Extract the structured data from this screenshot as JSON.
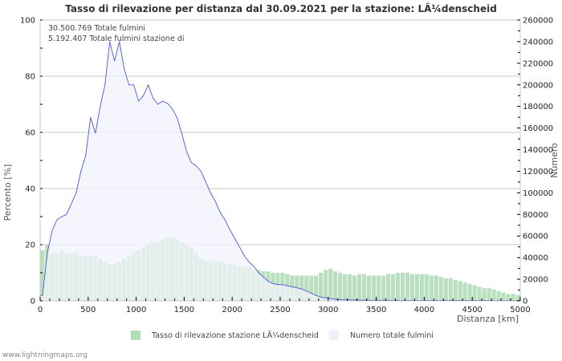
{
  "chart_data": {
    "type": "bar+area",
    "title": "Tasso di rilevazione per distanza dal 30.09.2021 per la stazione: LÃ¼denscheid",
    "xlabel": "Distanza   [km]",
    "ylabel_left": "Percento   [%]",
    "ylabel_right": "Numero",
    "xlim": [
      0,
      5000
    ],
    "ylim_left": [
      0,
      100
    ],
    "ylim_right": [
      0,
      260000
    ],
    "x_ticks": [
      0,
      500,
      1000,
      1500,
      2000,
      2500,
      3000,
      3500,
      4000,
      4500,
      5000
    ],
    "y_ticks_left": [
      0,
      20,
      40,
      60,
      80,
      100
    ],
    "y_ticks_right": [
      0,
      20000,
      40000,
      60000,
      80000,
      100000,
      120000,
      140000,
      160000,
      180000,
      200000,
      220000,
      240000,
      260000
    ],
    "grid": true,
    "annotations": [
      "30.500.769 Totale fulmini",
      "5.192.407 Totale fulmini stazione di"
    ],
    "legend": [
      "Tasso di rilevazione stazione LÃ¼denscheid",
      "Numero totale fulmini"
    ],
    "colors": {
      "detection_rate": "#b3dfb8",
      "total_strikes_fill": "#f2f2fc",
      "total_strikes_line": "#4a5ad8"
    },
    "x": [
      0,
      50,
      100,
      150,
      200,
      250,
      300,
      350,
      400,
      450,
      500,
      550,
      600,
      650,
      700,
      750,
      800,
      850,
      900,
      950,
      1000,
      1050,
      1100,
      1150,
      1200,
      1250,
      1300,
      1350,
      1400,
      1450,
      1500,
      1550,
      1600,
      1650,
      1700,
      1750,
      1800,
      1850,
      1900,
      1950,
      2000,
      2050,
      2100,
      2150,
      2200,
      2250,
      2300,
      2350,
      2400,
      2450,
      2500,
      2550,
      2600,
      2650,
      2700,
      2750,
      2800,
      2850,
      2900,
      2950,
      3000,
      3050,
      3100,
      3150,
      3200,
      3250,
      3300,
      3350,
      3400,
      3450,
      3500,
      3550,
      3600,
      3650,
      3700,
      3750,
      3800,
      3850,
      3900,
      3950,
      4000,
      4050,
      4100,
      4150,
      4200,
      4250,
      4300,
      4350,
      4400,
      4450,
      4500,
      4550,
      4600,
      4650,
      4700,
      4750,
      4800,
      4850,
      4900,
      4950
    ],
    "series": [
      {
        "name": "Tasso di rilevazione stazione LÃ¼denscheid",
        "axis": "left",
        "unit": "%",
        "values": [
          18,
          20,
          17,
          17,
          18,
          17,
          17,
          17,
          16,
          16,
          16,
          16,
          15,
          14,
          13,
          13,
          14,
          15,
          16,
          17,
          18,
          19,
          20,
          21,
          21,
          22,
          22.5,
          22.5,
          22,
          21,
          20,
          19,
          17,
          15,
          14.5,
          14.5,
          14,
          14,
          13.5,
          13,
          13,
          12.5,
          12,
          12,
          11,
          11,
          10.5,
          10.5,
          10,
          10,
          10,
          9.5,
          9,
          9,
          9,
          9,
          9,
          9,
          10,
          11,
          11.5,
          10.5,
          10,
          9.5,
          9.5,
          9,
          9.5,
          9.5,
          9,
          9,
          9,
          9,
          9.5,
          9.5,
          10,
          10,
          10,
          9.5,
          9.5,
          9.5,
          9.5,
          9,
          9,
          8.5,
          8,
          8,
          7.5,
          7,
          6.5,
          6,
          5.5,
          5,
          4.5,
          4.5,
          4,
          3.5,
          3,
          2.5,
          2.5,
          2
        ]
      },
      {
        "name": "Numero totale fulmini",
        "axis": "right",
        "unit": "count",
        "values": [
          5000,
          45000,
          65000,
          75000,
          78000,
          80000,
          90000,
          100000,
          120000,
          135000,
          170000,
          155000,
          180000,
          200000,
          240000,
          222000,
          240000,
          215000,
          200000,
          200000,
          185000,
          190000,
          200000,
          188000,
          182000,
          185000,
          183000,
          178000,
          170000,
          155000,
          138000,
          128000,
          125000,
          120000,
          110000,
          100000,
          92000,
          82000,
          75000,
          66000,
          58000,
          50000,
          42000,
          36000,
          32000,
          26000,
          22000,
          18000,
          16000,
          15000,
          15000,
          14000,
          13000,
          12000,
          11000,
          9000,
          7000,
          5000,
          3500,
          2500,
          2000,
          1500,
          1200,
          1000,
          900,
          800,
          700,
          600,
          600,
          500,
          500,
          500,
          500,
          500,
          400,
          400,
          400,
          400,
          400,
          400,
          400,
          400,
          400,
          400,
          400,
          400,
          400,
          400,
          400,
          400,
          400,
          400,
          400,
          400,
          300,
          300,
          300,
          300,
          300,
          300
        ]
      }
    ]
  },
  "footer": {
    "site": "www.lightningmaps.org"
  }
}
